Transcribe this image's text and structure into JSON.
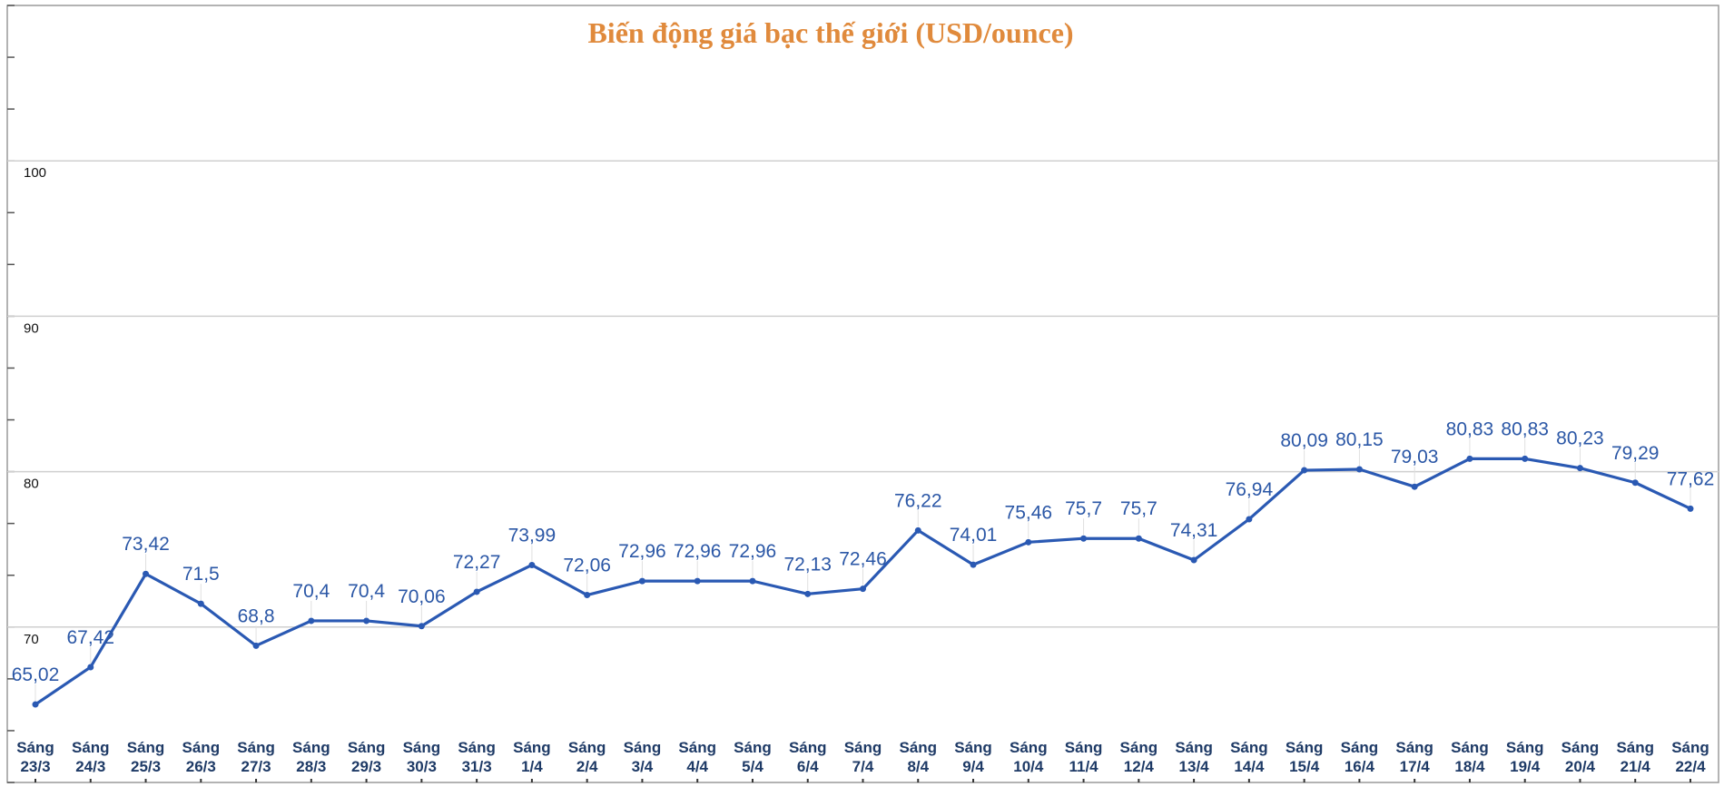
{
  "chart_data": {
    "type": "line",
    "title": "Biến động giá bạc thế giới (USD/ounce)",
    "xlabel": "",
    "ylabel": "",
    "ylim": [
      60,
      110
    ],
    "yticks": [
      70,
      80,
      90,
      100
    ],
    "grid": true,
    "legend": "none",
    "line_color": "#2a59b3",
    "title_color": "#e08a3c",
    "categories": [
      [
        "Sáng",
        "23/3"
      ],
      [
        "Sáng",
        "24/3"
      ],
      [
        "Sáng",
        "25/3"
      ],
      [
        "Sáng",
        "26/3"
      ],
      [
        "Sáng",
        "27/3"
      ],
      [
        "Sáng",
        "28/3"
      ],
      [
        "Sáng",
        "29/3"
      ],
      [
        "Sáng",
        "30/3"
      ],
      [
        "Sáng",
        "31/3"
      ],
      [
        "Sáng",
        "1/4"
      ],
      [
        "Sáng",
        "2/4"
      ],
      [
        "Sáng",
        "3/4"
      ],
      [
        "Sáng",
        "4/4"
      ],
      [
        "Sáng",
        "5/4"
      ],
      [
        "Sáng",
        "6/4"
      ],
      [
        "Sáng",
        "7/4"
      ],
      [
        "Sáng",
        "8/4"
      ],
      [
        "Sáng",
        "9/4"
      ],
      [
        "Sáng",
        "10/4"
      ],
      [
        "Sáng",
        "11/4"
      ],
      [
        "Sáng",
        "12/4"
      ],
      [
        "Sáng",
        "13/4"
      ],
      [
        "Sáng",
        "14/4"
      ],
      [
        "Sáng",
        "15/4"
      ],
      [
        "Sáng",
        "16/4"
      ],
      [
        "Sáng",
        "17/4"
      ],
      [
        "Sáng",
        "18/4"
      ],
      [
        "Sáng",
        "19/4"
      ],
      [
        "Sáng",
        "20/4"
      ],
      [
        "Sáng",
        "21/4"
      ],
      [
        "Sáng",
        "22/4"
      ]
    ],
    "values": [
      65.02,
      67.42,
      73.42,
      71.5,
      68.8,
      70.4,
      70.4,
      70.06,
      72.27,
      73.99,
      72.06,
      72.96,
      72.96,
      72.96,
      72.13,
      72.46,
      76.22,
      74.01,
      75.46,
      75.7,
      75.7,
      74.31,
      76.94,
      80.09,
      80.15,
      79.03,
      80.83,
      80.83,
      80.23,
      79.29,
      77.62
    ],
    "value_labels": [
      "65,02",
      "67,42",
      "73,42",
      "71,5",
      "68,8",
      "70,4",
      "70,4",
      "70,06",
      "72,27",
      "73,99",
      "72,06",
      "72,96",
      "72,96",
      "72,96",
      "72,13",
      "72,46",
      "76,22",
      "74,01",
      "75,46",
      "75,7",
      "75,7",
      "74,31",
      "76,94",
      "80,09",
      "80,15",
      "79,03",
      "80,83",
      "80,83",
      "80,23",
      "79,29",
      "77,62"
    ]
  }
}
